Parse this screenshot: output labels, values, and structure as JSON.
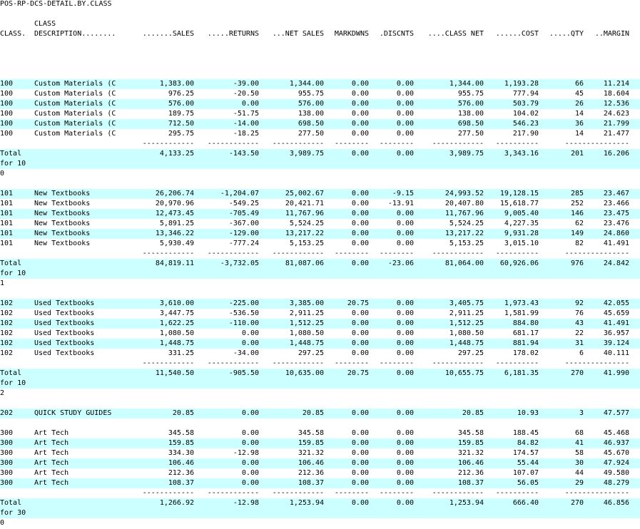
{
  "report": {
    "title": "POS-RP-DCS-DETAIL.BY.CLASS",
    "header": {
      "desc_top": "CLASS",
      "class": "CLASS.",
      "description": "DESCRIPTION........",
      "sales": ".......SALES",
      "returns": ".....RETURNS",
      "net_sales": "...NET SALES",
      "markdowns": "MARKDWNS",
      "discounts": ".DISCNTS",
      "class_net": "....CLASS NET",
      "cost": "......COST",
      "qty": ".....QTY",
      "margin": "..MARGIN"
    },
    "separator": {
      "sales": "------------",
      "returns": "------------",
      "net_sales": "------------",
      "markdowns": "--------",
      "discounts": "--------",
      "class_net": "------------",
      "cost": "----------",
      "qty_margin": "---------------"
    },
    "groups": [
      {
        "rows": [
          {
            "cls": "100",
            "desc": "Custom Materials (C",
            "sales": "1,383.00",
            "ret": "-39.00",
            "net": "1,344.00",
            "mkd": "0.00",
            "disc": "0.00",
            "cnet": "1,344.00",
            "cost": "1,193.28",
            "qty": "66",
            "mgn": "11.214"
          },
          {
            "cls": "100",
            "desc": "Custom Materials (C",
            "sales": "976.25",
            "ret": "-20.50",
            "net": "955.75",
            "mkd": "0.00",
            "disc": "0.00",
            "cnet": "955.75",
            "cost": "777.94",
            "qty": "45",
            "mgn": "18.604"
          },
          {
            "cls": "100",
            "desc": "Custom Materials (C",
            "sales": "576.00",
            "ret": "0.00",
            "net": "576.00",
            "mkd": "0.00",
            "disc": "0.00",
            "cnet": "576.00",
            "cost": "503.79",
            "qty": "26",
            "mgn": "12.536"
          },
          {
            "cls": "100",
            "desc": "Custom Materials (C",
            "sales": "189.75",
            "ret": "-51.75",
            "net": "138.00",
            "mkd": "0.00",
            "disc": "0.00",
            "cnet": "138.00",
            "cost": "104.02",
            "qty": "14",
            "mgn": "24.623"
          },
          {
            "cls": "100",
            "desc": "Custom Materials (C",
            "sales": "712.50",
            "ret": "-14.00",
            "net": "698.50",
            "mkd": "0.00",
            "disc": "0.00",
            "cnet": "698.50",
            "cost": "546.23",
            "qty": "36",
            "mgn": "21.799"
          },
          {
            "cls": "100",
            "desc": "Custom Materials (C",
            "sales": "295.75",
            "ret": "-18.25",
            "net": "277.50",
            "mkd": "0.00",
            "disc": "0.00",
            "cnet": "277.50",
            "cost": "217.90",
            "qty": "14",
            "mgn": "21.477"
          }
        ],
        "total": {
          "label1": "Total",
          "label2": "for 10",
          "label3": "0",
          "sales": "4,133.25",
          "ret": "-143.50",
          "net": "3,989.75",
          "mkd": "0.00",
          "disc": "0.00",
          "cnet": "3,989.75",
          "cost": "3,343.16",
          "qty": "201",
          "mgn": "16.206"
        }
      },
      {
        "rows": [
          {
            "cls": "101",
            "desc": "New Textbooks",
            "sales": "26,206.74",
            "ret": "-1,204.07",
            "net": "25,002.67",
            "mkd": "0.00",
            "disc": "-9.15",
            "cnet": "24,993.52",
            "cost": "19,128.15",
            "qty": "285",
            "mgn": "23.467"
          },
          {
            "cls": "101",
            "desc": "New Textbooks",
            "sales": "20,970.96",
            "ret": "-549.25",
            "net": "20,421.71",
            "mkd": "0.00",
            "disc": "-13.91",
            "cnet": "20,407.80",
            "cost": "15,618.77",
            "qty": "252",
            "mgn": "23.466"
          },
          {
            "cls": "101",
            "desc": "New Textbooks",
            "sales": "12,473.45",
            "ret": "-705.49",
            "net": "11,767.96",
            "mkd": "0.00",
            "disc": "0.00",
            "cnet": "11,767.96",
            "cost": "9,005.40",
            "qty": "146",
            "mgn": "23.475"
          },
          {
            "cls": "101",
            "desc": "New Textbooks",
            "sales": "5,891.25",
            "ret": "-367.00",
            "net": "5,524.25",
            "mkd": "0.00",
            "disc": "0.00",
            "cnet": "5,524.25",
            "cost": "4,227.35",
            "qty": "62",
            "mgn": "23.476"
          },
          {
            "cls": "101",
            "desc": "New Textbooks",
            "sales": "13,346.22",
            "ret": "-129.00",
            "net": "13,217.22",
            "mkd": "0.00",
            "disc": "0.00",
            "cnet": "13,217.22",
            "cost": "9,931.28",
            "qty": "149",
            "mgn": "24.860"
          },
          {
            "cls": "101",
            "desc": "New Textbooks",
            "sales": "5,930.49",
            "ret": "-777.24",
            "net": "5,153.25",
            "mkd": "0.00",
            "disc": "0.00",
            "cnet": "5,153.25",
            "cost": "3,015.10",
            "qty": "82",
            "mgn": "41.491"
          }
        ],
        "total": {
          "label1": "Total",
          "label2": "for 10",
          "label3": "1",
          "sales": "84,819.11",
          "ret": "-3,732.05",
          "net": "81,087.06",
          "mkd": "0.00",
          "disc": "-23.06",
          "cnet": "81,064.00",
          "cost": "60,926.06",
          "qty": "976",
          "mgn": "24.842"
        }
      },
      {
        "rows": [
          {
            "cls": "102",
            "desc": "Used Textbooks",
            "sales": "3,610.00",
            "ret": "-225.00",
            "net": "3,385.00",
            "mkd": "20.75",
            "disc": "0.00",
            "cnet": "3,405.75",
            "cost": "1,973.43",
            "qty": "92",
            "mgn": "42.055"
          },
          {
            "cls": "102",
            "desc": "Used Textbooks",
            "sales": "3,447.75",
            "ret": "-536.50",
            "net": "2,911.25",
            "mkd": "0.00",
            "disc": "0.00",
            "cnet": "2,911.25",
            "cost": "1,581.99",
            "qty": "76",
            "mgn": "45.659"
          },
          {
            "cls": "102",
            "desc": "Used Textbooks",
            "sales": "1,622.25",
            "ret": "-110.00",
            "net": "1,512.25",
            "mkd": "0.00",
            "disc": "0.00",
            "cnet": "1,512.25",
            "cost": "884.80",
            "qty": "43",
            "mgn": "41.491"
          },
          {
            "cls": "102",
            "desc": "Used Textbooks",
            "sales": "1,080.50",
            "ret": "0.00",
            "net": "1,080.50",
            "mkd": "0.00",
            "disc": "0.00",
            "cnet": "1,080.50",
            "cost": "681.17",
            "qty": "22",
            "mgn": "36.957"
          },
          {
            "cls": "102",
            "desc": "Used Textbooks",
            "sales": "1,448.75",
            "ret": "0.00",
            "net": "1,448.75",
            "mkd": "0.00",
            "disc": "0.00",
            "cnet": "1,448.75",
            "cost": "881.94",
            "qty": "31",
            "mgn": "39.124"
          },
          {
            "cls": "102",
            "desc": "Used Textbooks",
            "sales": "331.25",
            "ret": "-34.00",
            "net": "297.25",
            "mkd": "0.00",
            "disc": "0.00",
            "cnet": "297.25",
            "cost": "178.02",
            "qty": "6",
            "mgn": "40.111"
          }
        ],
        "total": {
          "label1": "Total",
          "label2": "for 10",
          "label3": "2",
          "sales": "11,540.50",
          "ret": "-905.50",
          "net": "10,635.00",
          "mkd": "20.75",
          "disc": "0.00",
          "cnet": "10,655.75",
          "cost": "6,181.35",
          "qty": "270",
          "mgn": "41.990"
        }
      },
      {
        "rows": [
          {
            "cls": "202",
            "desc": "QUICK STUDY GUIDES",
            "sales": "20.85",
            "ret": "0.00",
            "net": "20.85",
            "mkd": "0.00",
            "disc": "0.00",
            "cnet": "20.85",
            "cost": "10.93",
            "qty": "3",
            "mgn": "47.577"
          }
        ]
      },
      {
        "rows": [
          {
            "cls": "300",
            "desc": "Art Tech",
            "sales": "345.58",
            "ret": "0.00",
            "net": "345.58",
            "mkd": "0.00",
            "disc": "0.00",
            "cnet": "345.58",
            "cost": "188.45",
            "qty": "68",
            "mgn": "45.468"
          },
          {
            "cls": "300",
            "desc": "Art Tech",
            "sales": "159.85",
            "ret": "0.00",
            "net": "159.85",
            "mkd": "0.00",
            "disc": "0.00",
            "cnet": "159.85",
            "cost": "84.82",
            "qty": "41",
            "mgn": "46.937"
          },
          {
            "cls": "300",
            "desc": "Art Tech",
            "sales": "334.30",
            "ret": "-12.98",
            "net": "321.32",
            "mkd": "0.00",
            "disc": "0.00",
            "cnet": "321.32",
            "cost": "174.57",
            "qty": "58",
            "mgn": "45.670"
          },
          {
            "cls": "300",
            "desc": "Art Tech",
            "sales": "106.46",
            "ret": "0.00",
            "net": "106.46",
            "mkd": "0.00",
            "disc": "0.00",
            "cnet": "106.46",
            "cost": "55.44",
            "qty": "30",
            "mgn": "47.924"
          },
          {
            "cls": "300",
            "desc": "Art Tech",
            "sales": "212.36",
            "ret": "0.00",
            "net": "212.36",
            "mkd": "0.00",
            "disc": "0.00",
            "cnet": "212.36",
            "cost": "107.07",
            "qty": "44",
            "mgn": "49.580"
          },
          {
            "cls": "300",
            "desc": "Art Tech",
            "sales": "108.37",
            "ret": "0.00",
            "net": "108.37",
            "mkd": "0.00",
            "disc": "0.00",
            "cnet": "108.37",
            "cost": "56.05",
            "qty": "29",
            "mgn": "48.279"
          }
        ],
        "total": {
          "label1": "Total",
          "label2": "for 30",
          "label3": "0",
          "sales": "1,266.92",
          "ret": "-12.98",
          "net": "1,253.94",
          "mkd": "0.00",
          "disc": "0.00",
          "cnet": "1,253.94",
          "cost": "666.40",
          "qty": "270",
          "mgn": "46.856"
        }
      }
    ]
  }
}
